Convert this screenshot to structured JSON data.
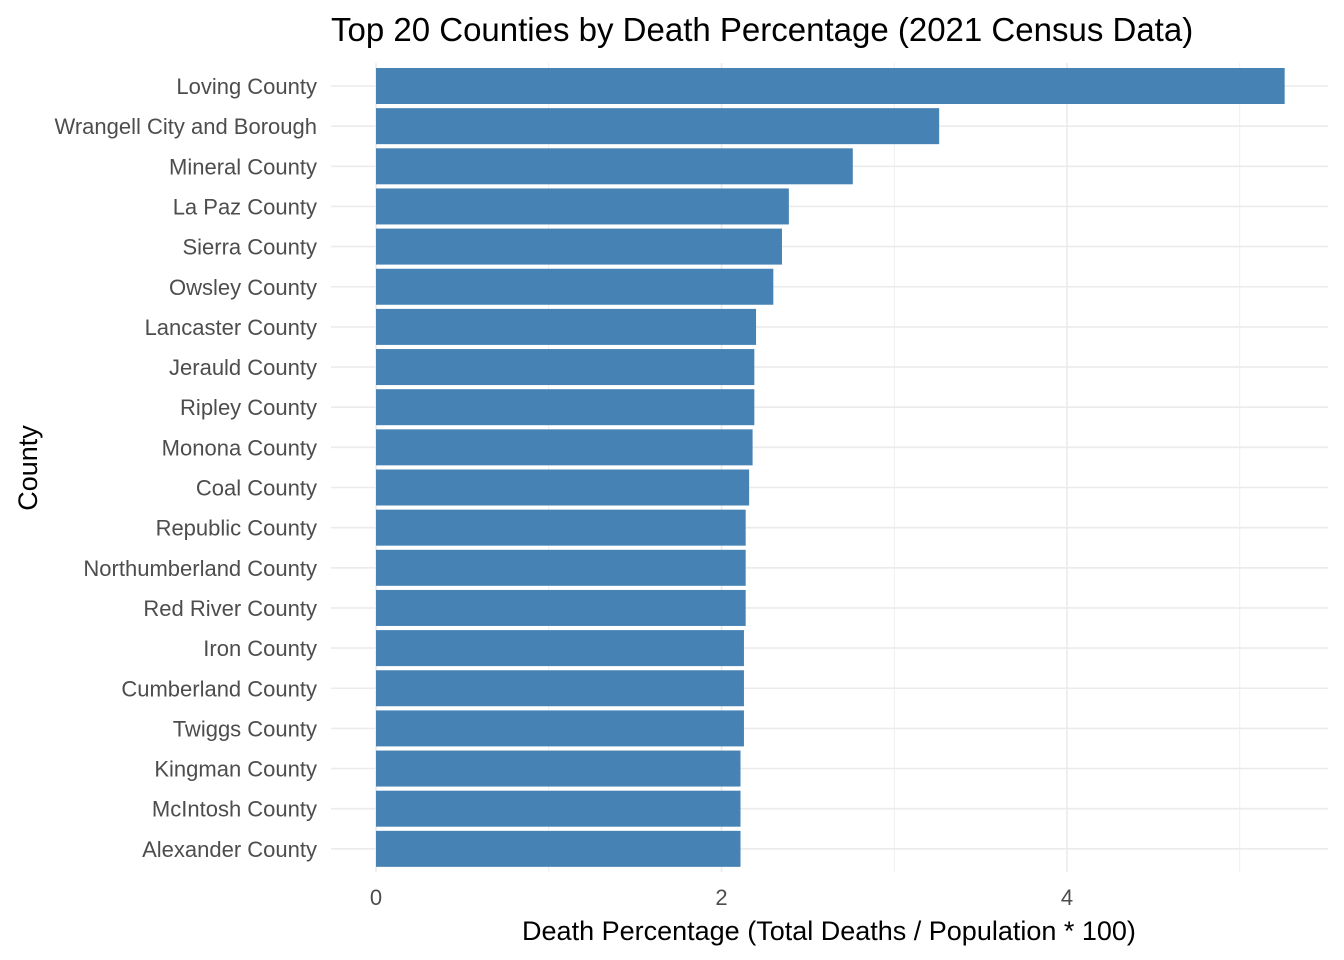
{
  "chart_data": {
    "type": "bar",
    "orientation": "horizontal",
    "title": "Top 20 Counties by Death Percentage (2021 Census Data)",
    "xlabel": "Death Percentage (Total Deaths / Population * 100)",
    "ylabel": "County",
    "xlim": [
      0,
      5.3
    ],
    "x_ticks": [
      0,
      2,
      4
    ],
    "grid": true,
    "bar_color": "#4682B4",
    "categories": [
      "Loving County",
      "Wrangell City and Borough",
      "Mineral County",
      "La Paz County",
      "Sierra County",
      "Owsley County",
      "Lancaster County",
      "Jerauld County",
      "Ripley County",
      "Monona County",
      "Coal County",
      "Republic County",
      "Northumberland County",
      "Red River County",
      "Iron County",
      "Cumberland County",
      "Twiggs County",
      "Kingman County",
      "McIntosh County",
      "Alexander County"
    ],
    "values": [
      5.26,
      3.26,
      2.76,
      2.39,
      2.35,
      2.3,
      2.2,
      2.19,
      2.19,
      2.18,
      2.16,
      2.14,
      2.14,
      2.14,
      2.13,
      2.13,
      2.13,
      2.11,
      2.11,
      2.11
    ]
  }
}
